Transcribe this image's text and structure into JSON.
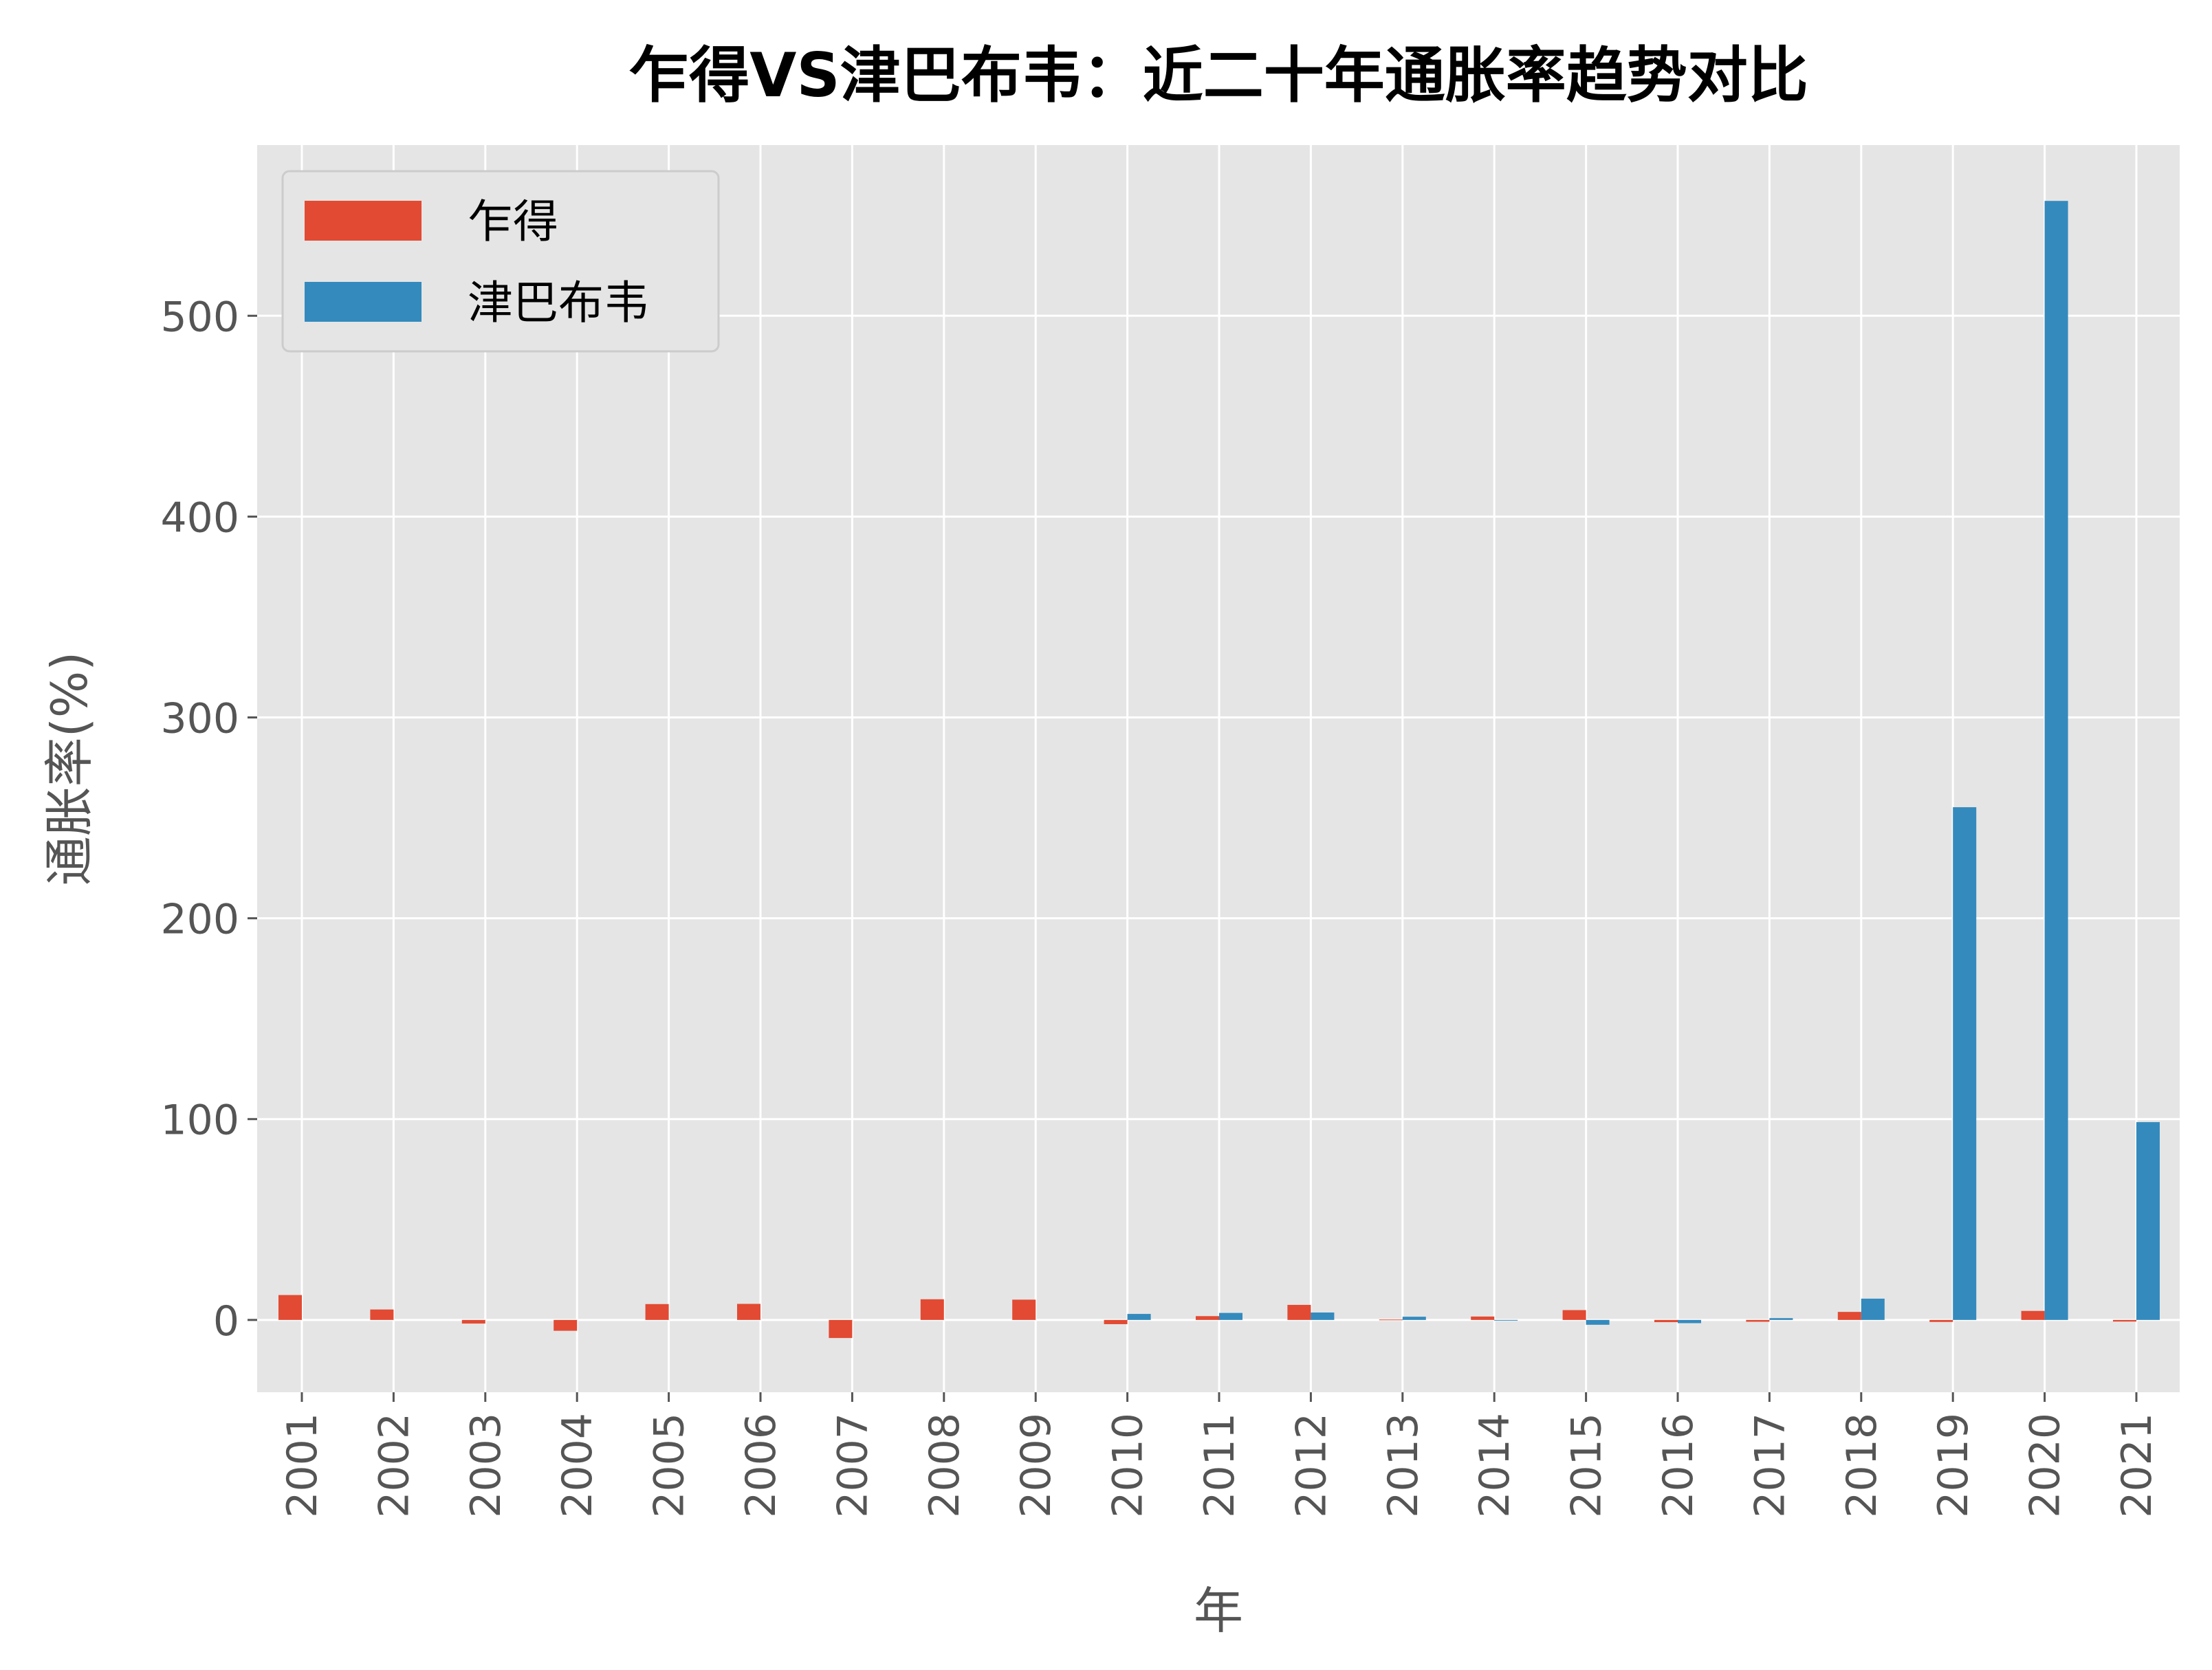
{
  "chart_data": {
    "type": "bar",
    "title": "乍得VS津巴布韦：近二十年通胀率趋势对比",
    "xlabel": "年",
    "ylabel": "通胀率(%)",
    "categories": [
      "2001",
      "2002",
      "2003",
      "2004",
      "2005",
      "2006",
      "2007",
      "2008",
      "2009",
      "2010",
      "2011",
      "2012",
      "2013",
      "2014",
      "2015",
      "2016",
      "2017",
      "2018",
      "2019",
      "2020",
      "2021"
    ],
    "series": [
      {
        "name": "乍得",
        "color": "#E24A33",
        "values": [
          12.4,
          5.2,
          -1.8,
          -5.4,
          7.9,
          8.0,
          -9.0,
          10.3,
          10.1,
          -2.1,
          1.9,
          7.5,
          0.2,
          1.7,
          4.9,
          -1.1,
          -0.9,
          4.0,
          -1.0,
          4.5,
          -0.8
        ]
      },
      {
        "name": "津巴布韦",
        "color": "#348ABD",
        "values": [
          0,
          0,
          0,
          0,
          0,
          0,
          0,
          0,
          0,
          3.0,
          3.5,
          3.7,
          1.6,
          -0.2,
          -2.4,
          -1.6,
          0.9,
          10.6,
          255.3,
          557.2,
          98.5
        ]
      }
    ],
    "ylim": [
      -36,
      585
    ],
    "yticks": [
      0,
      100,
      200,
      300,
      400,
      500
    ],
    "grid": true,
    "legend_position": "upper-left"
  }
}
